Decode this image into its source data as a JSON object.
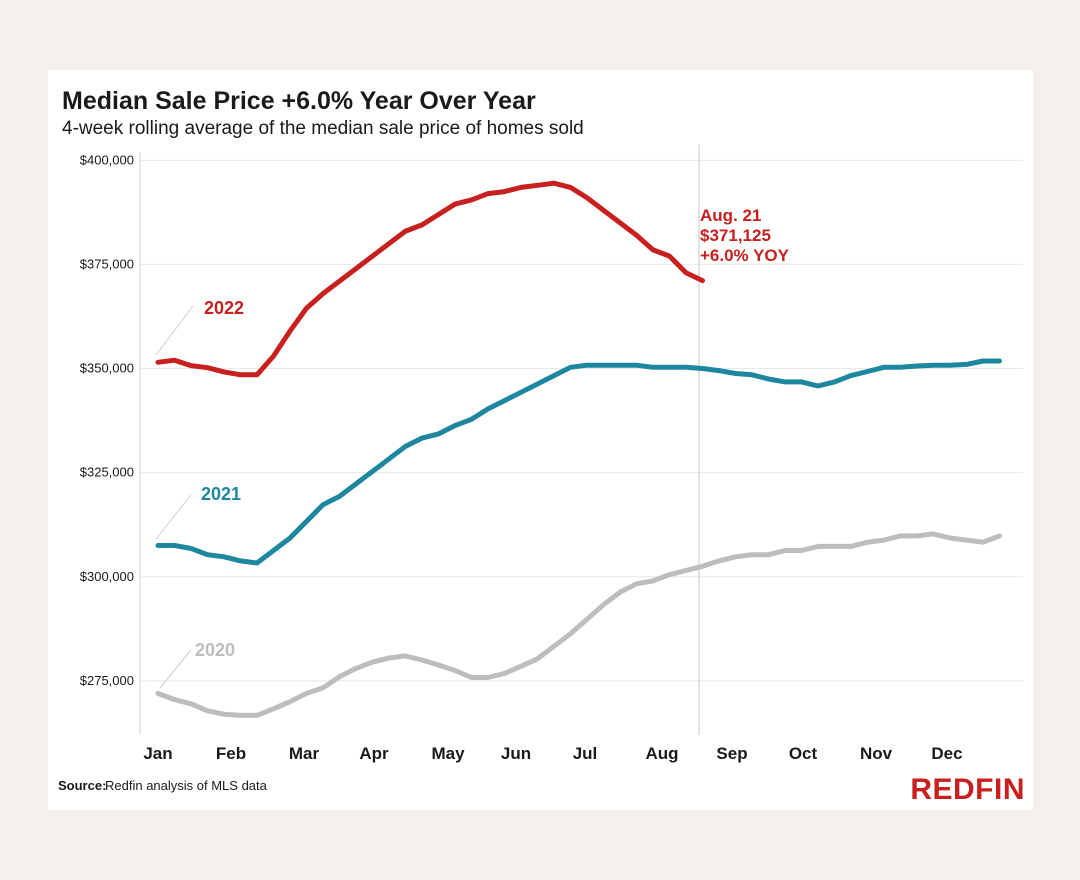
{
  "chart_data": {
    "type": "line",
    "title": "Median Sale Price +6.0% Year Over Year",
    "subtitle": "4-week rolling average of the median sale price of homes sold",
    "x_labels": [
      "Jan",
      "Feb",
      "Mar",
      "Apr",
      "May",
      "Jun",
      "Jul",
      "Aug",
      "Sep",
      "Oct",
      "Nov",
      "Dec"
    ],
    "y_ticks": [
      275000,
      300000,
      325000,
      350000,
      375000,
      400000
    ],
    "y_tick_labels": [
      "$275,000",
      "$300,000",
      "$325,000",
      "$350,000",
      "$375,000",
      "$400,000"
    ],
    "ylim": [
      262000,
      402000
    ],
    "xlim": [
      0,
      52
    ],
    "grid": true,
    "marker_date": "Aug. 21",
    "series": [
      {
        "name": "2022",
        "color": "#c8201e",
        "x": [
          0,
          1,
          2,
          3,
          4,
          5,
          6,
          7,
          8,
          9,
          10,
          11,
          12,
          13,
          14,
          15,
          16,
          17,
          18,
          19,
          20,
          21,
          22,
          23,
          24,
          25,
          26,
          27,
          28,
          29,
          30,
          31,
          32,
          33
        ],
        "values": [
          351500,
          352000,
          350700,
          350200,
          349200,
          348500,
          348500,
          353000,
          359000,
          364500,
          368000,
          371000,
          374000,
          377000,
          380000,
          383000,
          384500,
          387000,
          389500,
          390500,
          392000,
          392500,
          393500,
          394000,
          394500,
          393500,
          391000,
          388000,
          385000,
          382000,
          378500,
          377000,
          373000,
          371125
        ]
      },
      {
        "name": "2021",
        "color": "#1e87a0",
        "x": [
          0,
          1,
          2,
          3,
          4,
          5,
          6,
          7,
          8,
          9,
          10,
          11,
          12,
          13,
          14,
          15,
          16,
          17,
          18,
          19,
          20,
          21,
          22,
          23,
          24,
          25,
          26,
          27,
          28,
          29,
          30,
          31,
          32,
          33,
          34,
          35,
          36,
          37,
          38,
          39,
          40,
          41,
          42,
          43,
          44,
          45,
          46,
          47,
          48,
          49,
          50,
          51
        ],
        "values": [
          307500,
          307500,
          306800,
          305300,
          304800,
          303800,
          303300,
          306300,
          309300,
          313300,
          317300,
          319300,
          322300,
          325300,
          328300,
          331300,
          333300,
          334300,
          336300,
          337800,
          340300,
          342300,
          344300,
          346300,
          348300,
          350300,
          350800,
          350800,
          350800,
          350800,
          350300,
          350300,
          350300,
          350000,
          349500,
          348800,
          348500,
          347500,
          346800,
          346800,
          345800,
          346800,
          348300,
          349300,
          350300,
          350300,
          350600,
          350800,
          350800,
          351000,
          351800,
          351800
        ]
      },
      {
        "name": "2020",
        "color": "#bdbdbd",
        "x": [
          0,
          1,
          2,
          3,
          4,
          5,
          6,
          7,
          8,
          9,
          10,
          11,
          12,
          13,
          14,
          15,
          16,
          17,
          18,
          19,
          20,
          21,
          22,
          23,
          24,
          25,
          26,
          27,
          28,
          29,
          30,
          31,
          32,
          33,
          34,
          35,
          36,
          37,
          38,
          39,
          40,
          41,
          42,
          43,
          44,
          45,
          46,
          47,
          48,
          49,
          50,
          51
        ],
        "values": [
          272000,
          270500,
          269500,
          267800,
          267000,
          266700,
          266700,
          268300,
          270000,
          272000,
          273300,
          276000,
          278000,
          279500,
          280500,
          281000,
          280000,
          278800,
          277500,
          275800,
          275800,
          276800,
          278500,
          280300,
          283300,
          286300,
          289800,
          293300,
          296300,
          298300,
          299000,
          300500,
          301500,
          302500,
          303800,
          304800,
          305300,
          305300,
          306300,
          306300,
          307300,
          307300,
          307300,
          308300,
          308800,
          309800,
          309800,
          310300,
          309300,
          308800,
          308300,
          309800
        ]
      }
    ],
    "annotations": {
      "callout_date": "Aug. 21",
      "callout_value": "$371,125",
      "callout_yoy": "+6.0% YOY"
    }
  },
  "source_label": "Source:",
  "source_text": "Redfin analysis of MLS data",
  "logo_text": "REDFIN"
}
